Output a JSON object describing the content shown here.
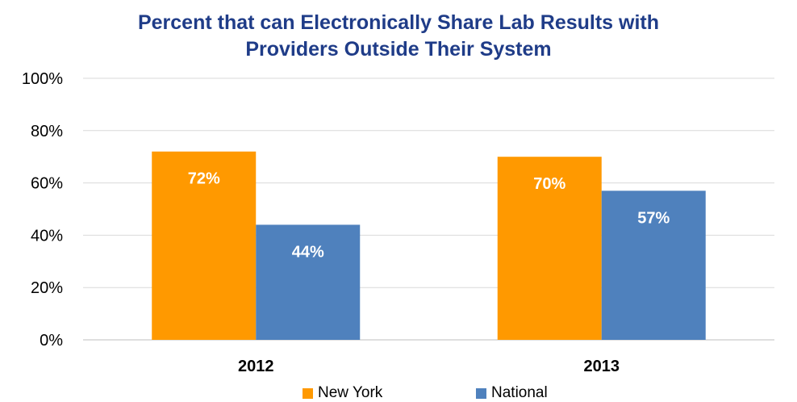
{
  "chart_data": {
    "type": "bar",
    "title_lines": [
      "Percent that can Electronically Share Lab Results with",
      "Providers Outside Their System"
    ],
    "categories": [
      "2012",
      "2013"
    ],
    "series": [
      {
        "name": "New York",
        "values": [
          72,
          70
        ],
        "labels": [
          "72%",
          "70%"
        ],
        "color": "#ff9900"
      },
      {
        "name": "National",
        "values": [
          44,
          57
        ],
        "labels": [
          "44%",
          "57%"
        ],
        "color": "#4f81bd"
      }
    ],
    "ylim": [
      0,
      100
    ],
    "yticks": [
      0,
      20,
      40,
      60,
      80,
      100
    ],
    "ytick_labels": [
      "0%",
      "20%",
      "40%",
      "60%",
      "80%",
      "100%"
    ],
    "grid": true,
    "legend_position": "bottom"
  }
}
